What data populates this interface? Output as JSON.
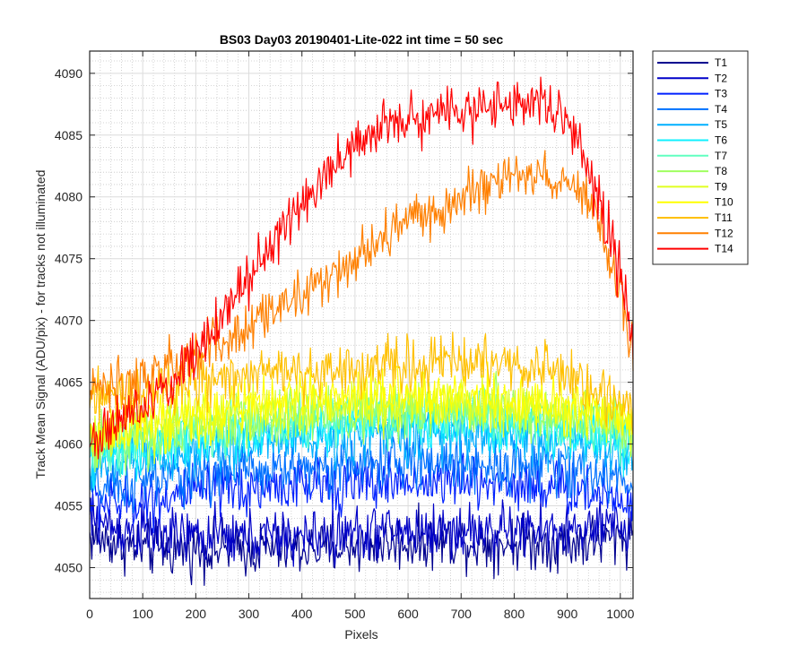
{
  "chart_data": {
    "type": "line",
    "title": "BS03 Day03 20190401-Lite-022 int time = 50 sec",
    "xlabel": "Pixels",
    "ylabel": "Track Mean Signal (ADU/pix) - for tracks not illuminated",
    "xlim": [
      0,
      1024
    ],
    "ylim": [
      4047.5,
      4091.8
    ],
    "x_ticks": [
      0,
      100,
      200,
      300,
      400,
      500,
      600,
      700,
      800,
      900,
      1000
    ],
    "y_ticks": [
      4050,
      4055,
      4060,
      4065,
      4070,
      4075,
      4080,
      4085,
      4090
    ],
    "grid": "major and minor",
    "legend_position": "outside top-right",
    "x": [
      0,
      50,
      100,
      150,
      200,
      250,
      300,
      350,
      400,
      450,
      500,
      550,
      600,
      650,
      700,
      750,
      800,
      850,
      900,
      950,
      1000,
      1024
    ],
    "series": [
      {
        "name": "T1",
        "color": "#00008f",
        "values": [
          4052.5,
          4052,
          4051.5,
          4051.5,
          4051.5,
          4051.5,
          4051.5,
          4051.5,
          4051.5,
          4051.5,
          4051.8,
          4052,
          4052,
          4052.2,
          4052.2,
          4052,
          4052,
          4052,
          4052,
          4052.2,
          4052.5,
          4052.8
        ]
      },
      {
        "name": "T2",
        "color": "#0000c8",
        "values": [
          4054,
          4053.2,
          4052.8,
          4052.5,
          4052.5,
          4052.5,
          4052.5,
          4052.5,
          4052.5,
          4052.5,
          4052.8,
          4053,
          4053,
          4053,
          4053,
          4053,
          4053,
          4053,
          4053,
          4053,
          4053.3,
          4053.5
        ]
      },
      {
        "name": "T3",
        "color": "#0020ff",
        "values": [
          4055.5,
          4055.2,
          4055.5,
          4055.8,
          4056,
          4056.2,
          4056.4,
          4056.5,
          4056.6,
          4056.7,
          4056.8,
          4056.9,
          4057,
          4057,
          4057,
          4056.9,
          4056.8,
          4056.6,
          4056.4,
          4056.1,
          4055.8,
          4055.5
        ]
      },
      {
        "name": "T4",
        "color": "#0070ff",
        "values": [
          4056.5,
          4056.4,
          4056.8,
          4057.2,
          4057.5,
          4057.7,
          4057.9,
          4058,
          4058.1,
          4058.2,
          4058.3,
          4058.4,
          4058.5,
          4058.5,
          4058.5,
          4058.4,
          4058.3,
          4058.1,
          4057.9,
          4057.6,
          4057.2,
          4056.8
        ]
      },
      {
        "name": "T5",
        "color": "#00b0ff",
        "values": [
          4058,
          4058.2,
          4058.6,
          4059,
          4059.4,
          4059.7,
          4060,
          4060.2,
          4060.4,
          4060.5,
          4060.6,
          4060.7,
          4060.8,
          4060.8,
          4060.8,
          4060.7,
          4060.6,
          4060.4,
          4060.1,
          4059.8,
          4059.4,
          4059
        ]
      },
      {
        "name": "T6",
        "color": "#10f0ff",
        "values": [
          4059,
          4059.2,
          4059.6,
          4060,
          4060.4,
          4060.7,
          4061,
          4061.2,
          4061.4,
          4061.5,
          4061.6,
          4061.7,
          4061.8,
          4061.8,
          4061.8,
          4061.7,
          4061.6,
          4061.4,
          4061.1,
          4060.8,
          4060.4,
          4060
        ]
      },
      {
        "name": "T7",
        "color": "#60ffc0",
        "values": [
          4059.5,
          4059.7,
          4060.1,
          4060.5,
          4060.9,
          4061.2,
          4061.5,
          4061.7,
          4061.9,
          4062,
          4062.1,
          4062.2,
          4062.3,
          4062.3,
          4062.3,
          4062.2,
          4062.1,
          4061.9,
          4061.6,
          4061.3,
          4060.9,
          4060.5
        ]
      },
      {
        "name": "T8",
        "color": "#a0ff60",
        "values": [
          4060,
          4060.2,
          4060.6,
          4061,
          4061.4,
          4061.7,
          4062,
          4062.2,
          4062.4,
          4062.5,
          4062.6,
          4062.7,
          4062.8,
          4062.8,
          4062.8,
          4062.7,
          4062.6,
          4062.4,
          4062.1,
          4061.8,
          4061.4,
          4061
        ]
      },
      {
        "name": "T9",
        "color": "#e0ff20",
        "values": [
          4060.5,
          4060.7,
          4061.1,
          4061.5,
          4061.9,
          4062.2,
          4062.5,
          4062.7,
          4062.9,
          4063,
          4063.1,
          4063.2,
          4063.3,
          4063.3,
          4063.3,
          4063.2,
          4063.1,
          4062.9,
          4062.6,
          4062.3,
          4061.9,
          4061.5
        ]
      },
      {
        "name": "T10",
        "color": "#ffff00",
        "values": [
          4061,
          4061.2,
          4061.6,
          4062,
          4062.4,
          4062.8,
          4063.1,
          4063.4,
          4063.6,
          4063.8,
          4063.9,
          4064,
          4064,
          4064,
          4064,
          4063.9,
          4063.8,
          4063.5,
          4063.1,
          4062.6,
          4062,
          4061.5
        ]
      },
      {
        "name": "T11",
        "color": "#ffc000",
        "values": [
          4063.5,
          4063.6,
          4064,
          4064.4,
          4064.8,
          4065.1,
          4065.4,
          4065.7,
          4065.9,
          4066.1,
          4066.3,
          4066.4,
          4066.5,
          4066.5,
          4066.5,
          4066.5,
          4066.4,
          4066.2,
          4065.6,
          4064.6,
          4063.5,
          4062.8
        ]
      },
      {
        "name": "T12",
        "color": "#ff8000",
        "values": [
          4064.5,
          4064.7,
          4065.2,
          4066,
          4067,
          4068.2,
          4069.5,
          4070.8,
          4072,
          4073.5,
          4075,
          4076.5,
          4077.8,
          4079,
          4080,
          4080.8,
          4081.5,
          4082,
          4081.2,
          4078.5,
          4072.5,
          4067.5
        ]
      },
      {
        "name": "T14",
        "color": "#ff0000",
        "values": [
          4060.5,
          4061.5,
          4063,
          4065,
          4067.5,
          4070.5,
          4073.5,
          4076.5,
          4079.5,
          4082,
          4084,
          4085.5,
          4086.3,
          4086.8,
          4087,
          4087.2,
          4087.4,
          4087.5,
          4086,
          4081,
          4074,
          4068
        ]
      }
    ]
  }
}
